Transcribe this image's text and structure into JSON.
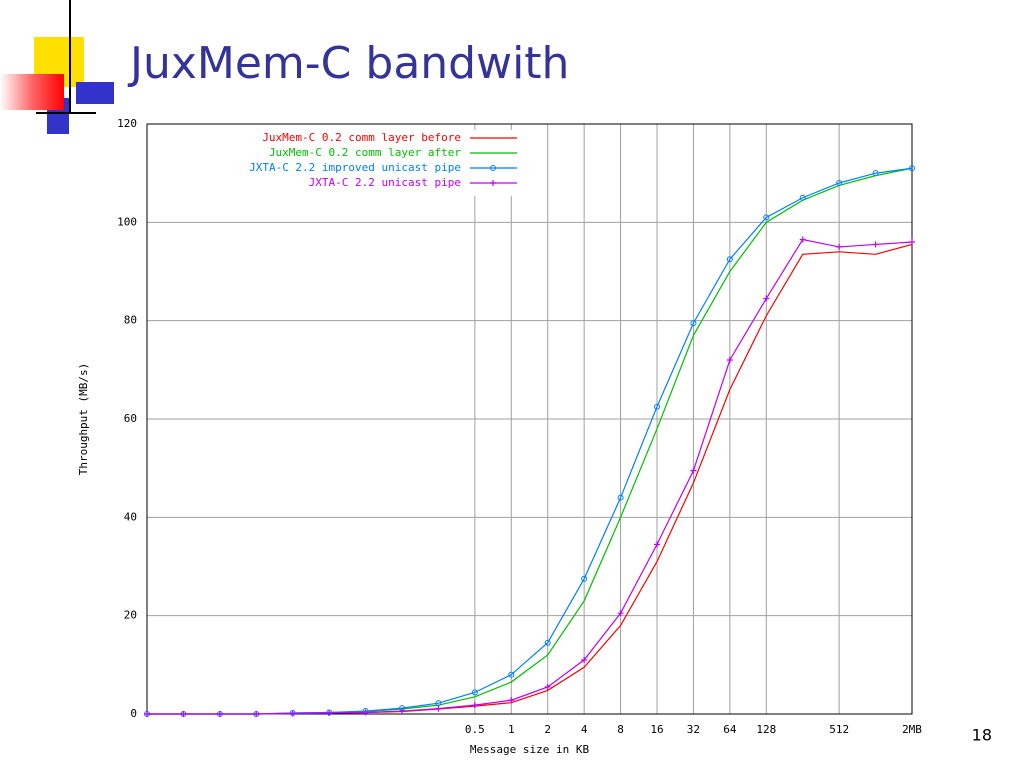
{
  "slide": {
    "title": "JuxMem-C bandwith",
    "page_number": "18"
  },
  "chart_data": {
    "type": "line",
    "x_label": "Message size in KB",
    "y_label": "Throughput (MB/s)",
    "x": [
      0.0009765625,
      0.001953125,
      0.00390625,
      0.0078125,
      0.015625,
      0.03125,
      0.0625,
      0.125,
      0.25,
      0.5,
      1,
      2,
      4,
      8,
      16,
      32,
      64,
      128,
      256,
      512,
      1024,
      2048
    ],
    "series": [
      {
        "name": "JuxMem-C 0.2 comm layer before",
        "color": "#ff0000",
        "values": [
          0,
          0,
          0,
          0,
          0.1,
          0.2,
          0.3,
          0.5,
          1,
          1.6,
          2.3,
          4.8,
          9.5,
          18,
          31,
          47,
          66,
          81,
          93.5,
          94,
          93.5,
          95.5
        ]
      },
      {
        "name": "JuxMem-C 0.2 comm layer after",
        "color": "#00c000",
        "values": [
          0,
          0,
          0,
          0,
          0.2,
          0.3,
          0.5,
          1,
          1.8,
          3.5,
          6.5,
          12,
          23,
          40,
          58,
          77,
          90,
          100,
          104.5,
          107.5,
          109.5,
          111
        ]
      },
      {
        "name": "JXTA-C 2.2 improved unicast pipe",
        "color": "#0080ff",
        "marker": "circle",
        "values": [
          0,
          0,
          0,
          0,
          0.2,
          0.3,
          0.6,
          1.2,
          2.2,
          4.4,
          8,
          14.5,
          27.5,
          44,
          62.5,
          79.5,
          92.5,
          101,
          105,
          108,
          110,
          111
        ]
      },
      {
        "name": "JXTA-C 2.2 unicast pipe",
        "color": "#c000ff",
        "marker": "plus",
        "values": [
          0,
          0,
          0,
          0,
          0.1,
          0.2,
          0.3,
          0.6,
          1.1,
          1.8,
          2.8,
          5.5,
          11,
          20.5,
          34.5,
          49.5,
          72,
          84.5,
          96.5,
          95,
          95.5,
          96
        ]
      }
    ],
    "x_log_base": 2,
    "xlim": [
      0.0009765625,
      2048
    ],
    "xticks": [
      0.5,
      1,
      2,
      4,
      8,
      16,
      32,
      64,
      128,
      512,
      {
        "value": 2048,
        "label": "2MB"
      }
    ],
    "ylim": [
      0,
      120
    ],
    "yticks": [
      0,
      20,
      40,
      60,
      80,
      100,
      120
    ],
    "grid": true,
    "legend": "top-left"
  }
}
